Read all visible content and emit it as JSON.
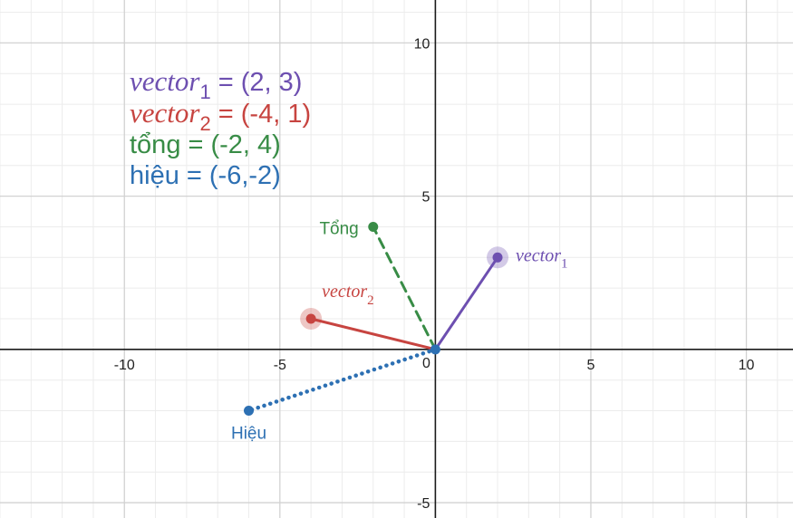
{
  "chart_data": {
    "type": "scatter",
    "xlim": [
      -14,
      11.5
    ],
    "ylim": [
      -5.5,
      11.4
    ],
    "grid": true,
    "x_ticks": [
      -10,
      -5,
      0,
      5,
      10
    ],
    "y_ticks": [
      5,
      10,
      -5
    ],
    "x_tick_labels": [
      "-10",
      "-5",
      "0",
      "5",
      "10"
    ],
    "y_tick_labels": [
      "5",
      "10",
      "-5"
    ],
    "colors": {
      "vector1": "#6d4fb0",
      "vector2": "#c74440",
      "tong": "#388c46",
      "hieu": "#2d70b3",
      "axis": "#1a1a1a",
      "grid_major": "#d2d2d2",
      "grid_minor": "#ececec"
    },
    "series": [
      {
        "key": "vector1",
        "label_base": "vector",
        "label_sub": "1",
        "color": "#6d4fb0",
        "style": "solid",
        "from": [
          0,
          0
        ],
        "to": [
          2,
          3
        ],
        "highlight": true
      },
      {
        "key": "vector2",
        "label_base": "vector",
        "label_sub": "2",
        "color": "#c74440",
        "style": "solid",
        "from": [
          0,
          0
        ],
        "to": [
          -4,
          1
        ],
        "highlight": true
      },
      {
        "key": "tong",
        "label": "Tổng",
        "color": "#388c46",
        "style": "dashed",
        "from": [
          0,
          0
        ],
        "to": [
          -2,
          4
        ],
        "highlight": false
      },
      {
        "key": "hieu",
        "label": "Hiệu",
        "color": "#2d70b3",
        "style": "dotted",
        "from": [
          0,
          0
        ],
        "to": [
          -6,
          -2
        ],
        "highlight": false
      }
    ],
    "origin_point": [
      0,
      0
    ],
    "legend": {
      "placement": "top-left",
      "lines": [
        {
          "key": "vector1",
          "base": "vector",
          "sub": "1",
          "text": " = (2, 3)",
          "color": "#6d4fb0"
        },
        {
          "key": "vector2",
          "base": "vector",
          "sub": "2",
          "text": " = (-4, 1)",
          "color": "#c74440"
        },
        {
          "key": "tong",
          "text": "tổng = (-2, 4)",
          "color": "#388c46"
        },
        {
          "key": "hieu",
          "text": "hiệu = (-6,-2)",
          "color": "#2d70b3"
        }
      ]
    }
  }
}
